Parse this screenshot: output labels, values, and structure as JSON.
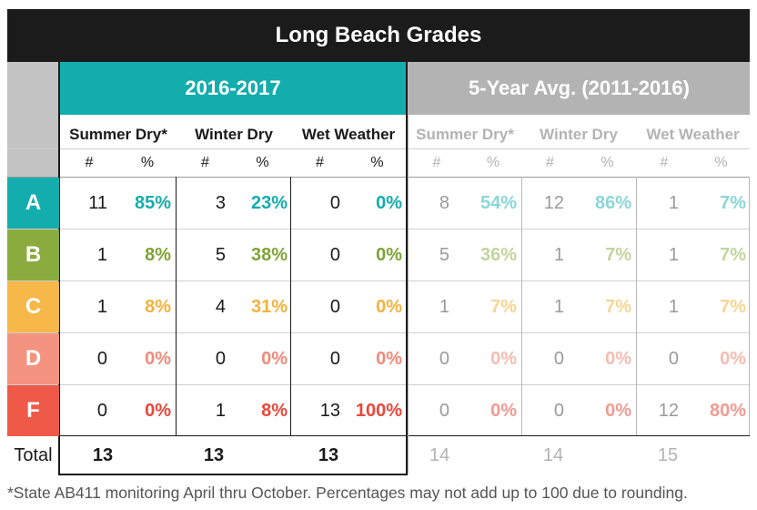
{
  "title": "Long Beach Grades",
  "current_header": "2016-2017",
  "avg_header": "5-Year Avg. (2011-2016)",
  "columns": [
    "Summer Dry*",
    "Winter Dry",
    "Wet Weather"
  ],
  "sub_labels": {
    "num": "#",
    "pct": "%"
  },
  "grades": [
    {
      "letter": "A",
      "color": "#13adad",
      "pct_color": "#13adad",
      "avg_pct_color": "#8ad6d6"
    },
    {
      "letter": "B",
      "color": "#8aac3e",
      "pct_color": "#7fa236",
      "avg_pct_color": "#c2d49d"
    },
    {
      "letter": "C",
      "color": "#f7b84a",
      "pct_color": "#f5b23c",
      "avg_pct_color": "#f8d592"
    },
    {
      "letter": "D",
      "color": "#f4937f",
      "pct_color": "#f08a78",
      "avg_pct_color": "#f6bcb1"
    },
    {
      "letter": "F",
      "color": "#ee5948",
      "pct_color": "#e9473a",
      "avg_pct_color": "#f29a91"
    }
  ],
  "current": [
    [
      [
        "11",
        "85%"
      ],
      [
        "3",
        "23%"
      ],
      [
        "0",
        "0%"
      ]
    ],
    [
      [
        "1",
        "8%"
      ],
      [
        "5",
        "38%"
      ],
      [
        "0",
        "0%"
      ]
    ],
    [
      [
        "1",
        "8%"
      ],
      [
        "4",
        "31%"
      ],
      [
        "0",
        "0%"
      ]
    ],
    [
      [
        "0",
        "0%"
      ],
      [
        "0",
        "0%"
      ],
      [
        "0",
        "0%"
      ]
    ],
    [
      [
        "0",
        "0%"
      ],
      [
        "1",
        "8%"
      ],
      [
        "13",
        "100%"
      ]
    ]
  ],
  "average": [
    [
      [
        "8",
        "54%"
      ],
      [
        "12",
        "86%"
      ],
      [
        "1",
        "7%"
      ]
    ],
    [
      [
        "5",
        "36%"
      ],
      [
        "1",
        "7%"
      ],
      [
        "1",
        "7%"
      ]
    ],
    [
      [
        "1",
        "7%"
      ],
      [
        "1",
        "7%"
      ],
      [
        "1",
        "7%"
      ]
    ],
    [
      [
        "0",
        "0%"
      ],
      [
        "0",
        "0%"
      ],
      [
        "0",
        "0%"
      ]
    ],
    [
      [
        "0",
        "0%"
      ],
      [
        "0",
        "0%"
      ],
      [
        "12",
        "80%"
      ]
    ]
  ],
  "total_label": "Total",
  "totals_current": [
    "13",
    "13",
    "13"
  ],
  "totals_avg": [
    "14",
    "14",
    "15"
  ],
  "footnote": "*State AB411 monitoring April thru October. Percentages may not add up to 100 due to rounding."
}
